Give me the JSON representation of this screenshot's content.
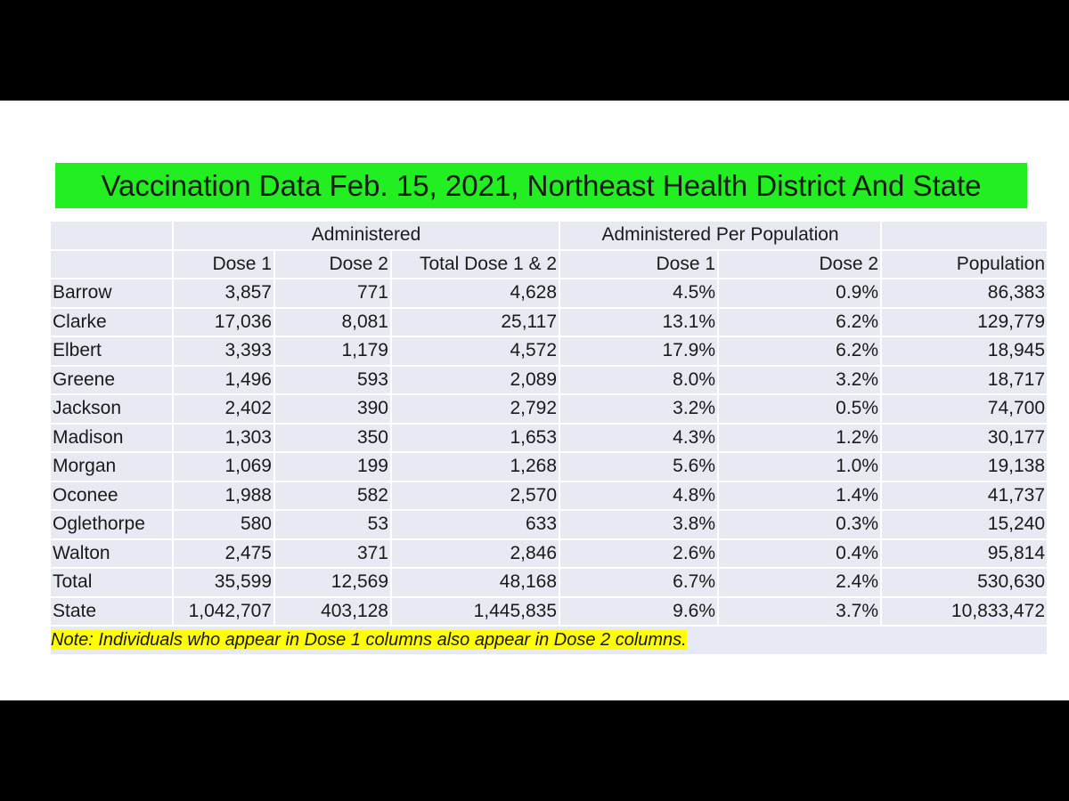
{
  "title": "Vaccination Data Feb. 15, 2021, Northeast Health District And State",
  "table": {
    "group_headers": [
      "Administered",
      "Administered Per Population"
    ],
    "columns": [
      "Dose 1",
      "Dose 2",
      "Total Dose 1 & 2",
      "Dose 1",
      "Dose 2",
      "Population"
    ],
    "rows": [
      [
        "Barrow",
        "3,857",
        "771",
        "4,628",
        "4.5%",
        "0.9%",
        "86,383"
      ],
      [
        "Clarke",
        "17,036",
        "8,081",
        "25,117",
        "13.1%",
        "6.2%",
        "129,779"
      ],
      [
        "Elbert",
        "3,393",
        "1,179",
        "4,572",
        "17.9%",
        "6.2%",
        "18,945"
      ],
      [
        "Greene",
        "1,496",
        "593",
        "2,089",
        "8.0%",
        "3.2%",
        "18,717"
      ],
      [
        "Jackson",
        "2,402",
        "390",
        "2,792",
        "3.2%",
        "0.5%",
        "74,700"
      ],
      [
        "Madison",
        "1,303",
        "350",
        "1,653",
        "4.3%",
        "1.2%",
        "30,177"
      ],
      [
        "Morgan",
        "1,069",
        "199",
        "1,268",
        "5.6%",
        "1.0%",
        "19,138"
      ],
      [
        "Oconee",
        "1,988",
        "582",
        "2,570",
        "4.8%",
        "1.4%",
        "41,737"
      ],
      [
        "Oglethorpe",
        "580",
        "53",
        "633",
        "3.8%",
        "0.3%",
        "15,240"
      ],
      [
        "Walton",
        "2,475",
        "371",
        "2,846",
        "2.6%",
        "0.4%",
        "95,814"
      ],
      [
        "Total",
        "35,599",
        "12,569",
        "48,168",
        "6.7%",
        "2.4%",
        "530,630"
      ],
      [
        "State",
        "1,042,707",
        "403,128",
        "1,445,835",
        "9.6%",
        "3.7%",
        "10,833,472"
      ]
    ],
    "note": "Note: Individuals who appear in Dose 1 columns also appear in Dose 2 columns."
  }
}
